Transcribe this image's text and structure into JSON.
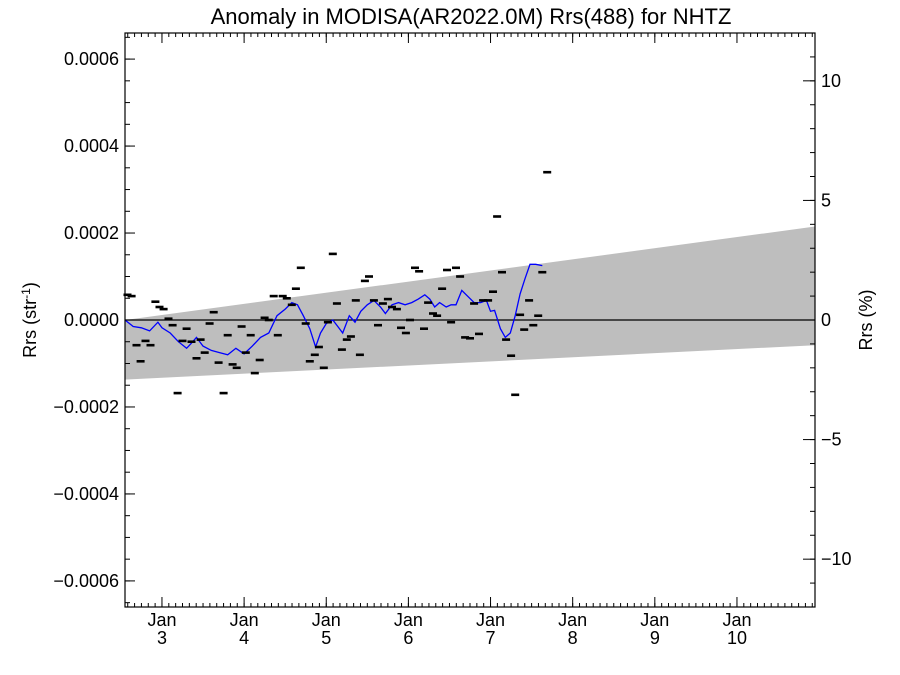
{
  "chart_data": {
    "type": "scatter",
    "title": "Anomaly in MODISA(AR2022.0M) Rrs(488) for NHTZ",
    "ylabel_base": "Rrs (str",
    "ylabel_exp": "-1",
    "ylabel_close": ")",
    "y2label": "Rrs (%)",
    "ylim": [
      -0.00066,
      0.00066
    ],
    "y2lim": [
      -12,
      12
    ],
    "xlim": [
      2.55,
      10.95
    ],
    "y_ticks": [
      {
        "value": 0.0006,
        "label": "0.0006"
      },
      {
        "value": 0.0004,
        "label": "0.0004"
      },
      {
        "value": 0.0002,
        "label": "0.0002"
      },
      {
        "value": 0.0,
        "label": "0.0000"
      },
      {
        "value": -0.0002,
        "label": "−0.0002"
      },
      {
        "value": -0.0004,
        "label": "−0.0004"
      },
      {
        "value": -0.0006,
        "label": "−0.0006"
      }
    ],
    "y2_ticks": [
      {
        "value": 10,
        "label": "10"
      },
      {
        "value": 5,
        "label": "5"
      },
      {
        "value": 0,
        "label": "0"
      },
      {
        "value": -5,
        "label": "−5"
      },
      {
        "value": -10,
        "label": "−10"
      }
    ],
    "x_ticks": [
      {
        "value": 3,
        "month": "Jan",
        "year": "3"
      },
      {
        "value": 4,
        "month": "Jan",
        "year": "4"
      },
      {
        "value": 5,
        "month": "Jan",
        "year": "5"
      },
      {
        "value": 6,
        "month": "Jan",
        "year": "6"
      },
      {
        "value": 7,
        "month": "Jan",
        "year": "7"
      },
      {
        "value": 8,
        "month": "Jan",
        "year": "8"
      },
      {
        "value": 9,
        "month": "Jan",
        "year": "9"
      },
      {
        "value": 10,
        "month": "Jan",
        "year": "10"
      }
    ],
    "band": {
      "start_x": 2.55,
      "end_x": 10.95,
      "start_upper": 0.0,
      "start_lower": -0.000137,
      "end_upper": 0.000215,
      "end_lower": -5.8e-05
    },
    "zero_line": 0,
    "points": [
      [
        2.58,
        5.8e-05
      ],
      [
        2.63,
        5.5e-05
      ],
      [
        2.69,
        -5.8e-05
      ],
      [
        2.74,
        -9.5e-05
      ],
      [
        2.8,
        -4.8e-05
      ],
      [
        2.86,
        -5.8e-05
      ],
      [
        2.92,
        4.2e-05
      ],
      [
        2.97,
        3e-05
      ],
      [
        3.02,
        2.5e-05
      ],
      [
        3.08,
        3e-06
      ],
      [
        3.13,
        -1.2e-05
      ],
      [
        3.19,
        -0.000168
      ],
      [
        3.25,
        -4.8e-05
      ],
      [
        3.3,
        -2e-05
      ],
      [
        3.36,
        -5e-05
      ],
      [
        3.42,
        -8.8e-05
      ],
      [
        3.47,
        -4.5e-05
      ],
      [
        3.52,
        -7.5e-05
      ],
      [
        3.58,
        -8e-06
      ],
      [
        3.63,
        1.8e-05
      ],
      [
        3.69,
        -9.8e-05
      ],
      [
        3.75,
        -0.000168
      ],
      [
        3.8,
        -3.5e-05
      ],
      [
        3.86,
        -0.000102
      ],
      [
        3.91,
        -0.00011
      ],
      [
        3.97,
        -1.5e-05
      ],
      [
        4.02,
        -7.5e-05
      ],
      [
        4.08,
        -3.5e-05
      ],
      [
        4.13,
        -0.000122
      ],
      [
        4.19,
        -9.2e-05
      ],
      [
        4.25,
        5e-06
      ],
      [
        4.3,
        0.0
      ],
      [
        4.36,
        5.5e-05
      ],
      [
        4.41,
        -3.5e-05
      ],
      [
        4.47,
        5.5e-05
      ],
      [
        4.52,
        5e-05
      ],
      [
        4.58,
        3.5e-05
      ],
      [
        4.63,
        7.2e-05
      ],
      [
        4.69,
        0.00012
      ],
      [
        4.75,
        -8e-06
      ],
      [
        4.8,
        -9.5e-05
      ],
      [
        4.86,
        -8e-05
      ],
      [
        4.91,
        -6.2e-05
      ],
      [
        4.97,
        -0.00011
      ],
      [
        5.02,
        -5e-06
      ],
      [
        5.08,
        0.000152
      ],
      [
        5.13,
        3.8e-05
      ],
      [
        5.19,
        -6.8e-05
      ],
      [
        5.25,
        -4.5e-05
      ],
      [
        5.3,
        -3.8e-05
      ],
      [
        5.36,
        4.5e-05
      ],
      [
        5.41,
        -8e-05
      ],
      [
        5.47,
        9e-05
      ],
      [
        5.52,
        0.0001
      ],
      [
        5.58,
        4.5e-05
      ],
      [
        5.63,
        -1.2e-05
      ],
      [
        5.69,
        3.8e-05
      ],
      [
        5.75,
        4.8e-05
      ],
      [
        5.8,
        3e-05
      ],
      [
        5.86,
        2.5e-05
      ],
      [
        5.91,
        -1.8e-05
      ],
      [
        5.97,
        -3e-05
      ],
      [
        6.02,
        0.0
      ],
      [
        6.08,
        0.00012
      ],
      [
        6.13,
        0.000112
      ],
      [
        6.19,
        -2e-05
      ],
      [
        6.24,
        4e-05
      ],
      [
        6.3,
        1.5e-05
      ],
      [
        6.35,
        1e-05
      ],
      [
        6.41,
        7.2e-05
      ],
      [
        6.47,
        0.000115
      ],
      [
        6.52,
        -5e-06
      ],
      [
        6.58,
        0.00012
      ],
      [
        6.63,
        0.0001
      ],
      [
        6.69,
        -4e-05
      ],
      [
        6.75,
        -4.2e-05
      ],
      [
        6.8,
        3.8e-05
      ],
      [
        6.86,
        -3.2e-05
      ],
      [
        6.91,
        4.5e-05
      ],
      [
        6.97,
        4.5e-05
      ],
      [
        7.03,
        6.5e-05
      ],
      [
        7.08,
        0.000238
      ],
      [
        7.14,
        0.00011
      ],
      [
        7.19,
        -4.5e-05
      ],
      [
        7.25,
        -8.2e-05
      ],
      [
        7.3,
        -0.000172
      ],
      [
        7.36,
        1.2e-05
      ],
      [
        7.41,
        -2.2e-05
      ],
      [
        7.47,
        4.5e-05
      ],
      [
        7.52,
        -1.2e-05
      ],
      [
        7.58,
        1e-05
      ],
      [
        7.63,
        0.00011
      ],
      [
        7.69,
        0.00034
      ]
    ],
    "trend_line": [
      [
        2.55,
        0.0
      ],
      [
        2.65,
        -1.5e-05
      ],
      [
        2.75,
        -1.8e-05
      ],
      [
        2.85,
        -2.5e-05
      ],
      [
        2.95,
        -5e-06
      ],
      [
        3.0,
        -1.8e-05
      ],
      [
        3.1,
        -3e-05
      ],
      [
        3.2,
        -5e-05
      ],
      [
        3.3,
        -6.5e-05
      ],
      [
        3.35,
        -5.5e-05
      ],
      [
        3.42,
        -4e-05
      ],
      [
        3.5,
        -6e-05
      ],
      [
        3.6,
        -7e-05
      ],
      [
        3.7,
        -7.5e-05
      ],
      [
        3.8,
        -8e-05
      ],
      [
        3.9,
        -6.5e-05
      ],
      [
        4.0,
        -7.8e-05
      ],
      [
        4.1,
        -6e-05
      ],
      [
        4.2,
        -4e-05
      ],
      [
        4.3,
        -3e-05
      ],
      [
        4.4,
        1e-05
      ],
      [
        4.5,
        2.5e-05
      ],
      [
        4.58,
        4e-05
      ],
      [
        4.65,
        3.5e-05
      ],
      [
        4.72,
        1e-05
      ],
      [
        4.8,
        -2e-05
      ],
      [
        4.87,
        -6.2e-05
      ],
      [
        4.93,
        -3e-05
      ],
      [
        5.0,
        -8e-06
      ],
      [
        5.08,
        0.0
      ],
      [
        5.14,
        -1.5e-05
      ],
      [
        5.2,
        -3e-05
      ],
      [
        5.28,
        1e-05
      ],
      [
        5.35,
        -5e-06
      ],
      [
        5.42,
        2e-05
      ],
      [
        5.5,
        3.5e-05
      ],
      [
        5.58,
        4.5e-05
      ],
      [
        5.66,
        3e-05
      ],
      [
        5.72,
        1.5e-05
      ],
      [
        5.8,
        3.5e-05
      ],
      [
        5.88,
        4e-05
      ],
      [
        5.96,
        3.5e-05
      ],
      [
        6.04,
        4e-05
      ],
      [
        6.12,
        4.8e-05
      ],
      [
        6.2,
        5.8e-05
      ],
      [
        6.26,
        4.8e-05
      ],
      [
        6.32,
        3e-05
      ],
      [
        6.38,
        4e-05
      ],
      [
        6.46,
        3e-05
      ],
      [
        6.52,
        3.5e-05
      ],
      [
        6.58,
        3.5e-05
      ],
      [
        6.65,
        6.8e-05
      ],
      [
        6.72,
        5.5e-05
      ],
      [
        6.8,
        4e-05
      ],
      [
        6.88,
        4e-05
      ],
      [
        6.95,
        4.5e-05
      ],
      [
        7.0,
        2e-05
      ],
      [
        7.05,
        2.2e-05
      ],
      [
        7.12,
        -2e-05
      ],
      [
        7.18,
        -4e-05
      ],
      [
        7.24,
        -3e-05
      ],
      [
        7.3,
        1e-05
      ],
      [
        7.36,
        6e-05
      ],
      [
        7.42,
        9.5e-05
      ],
      [
        7.48,
        0.000128
      ],
      [
        7.55,
        0.000128
      ],
      [
        7.63,
        0.000125
      ]
    ]
  }
}
